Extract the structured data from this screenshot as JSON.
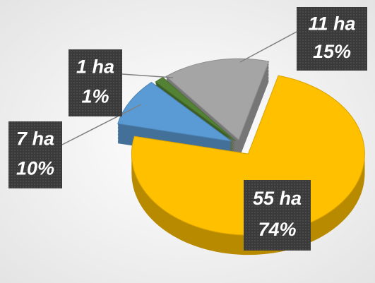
{
  "chart_data": {
    "type": "pie",
    "values": [
      55,
      7,
      1,
      11
    ],
    "value_labels": [
      "55 ha",
      "7 ha",
      "1 ha",
      "11 ha"
    ],
    "percents": [
      74,
      10,
      1,
      15
    ],
    "percent_labels": [
      "74%",
      "10%",
      "1%",
      "15%"
    ],
    "colors": [
      "#FFC000",
      "#5B9BD5",
      "#548235",
      "#A5A5A5"
    ]
  }
}
